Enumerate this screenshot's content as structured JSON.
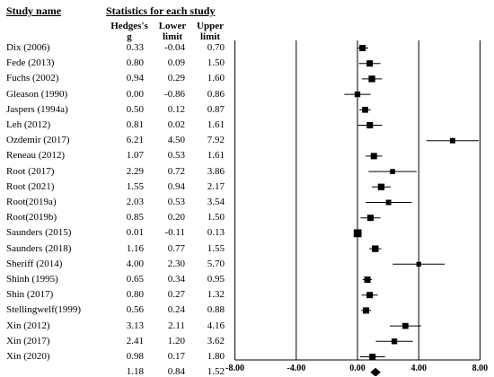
{
  "header": {
    "study_name": "Study name",
    "stats_group": "Statistics for each study",
    "col_g": "Hedges's g",
    "col_g_line1": "Hedges's",
    "col_g_line2": "g",
    "col_lower_line1": "Lower",
    "col_lower_line2": "limit",
    "col_upper_line1": "Upper",
    "col_upper_line2": "limit"
  },
  "rows": [
    {
      "study": "Dix (2006)",
      "g": "0.33",
      "lower": "-0.04",
      "upper": "0.70"
    },
    {
      "study": "Fede (2013)",
      "g": "0.80",
      "lower": "0.09",
      "upper": "1.50"
    },
    {
      "study": "Fuchs (2002)",
      "g": "0.94",
      "lower": "0.29",
      "upper": "1.60"
    },
    {
      "study": "Gleason (1990)",
      "g": "0.00",
      "lower": "-0.86",
      "upper": "0.86"
    },
    {
      "study": "Jaspers (1994a)",
      "g": "0.50",
      "lower": "0.12",
      "upper": "0.87"
    },
    {
      "study": "Leh (2012)",
      "g": "0.81",
      "lower": "0.02",
      "upper": "1.61"
    },
    {
      "study": "Ozdemir (2017)",
      "g": "6.21",
      "lower": "4.50",
      "upper": "7.92"
    },
    {
      "study": "Reneau (2012)",
      "g": "1.07",
      "lower": "0.53",
      "upper": "1.61"
    },
    {
      "study": "Root (2017)",
      "g": "2.29",
      "lower": "0.72",
      "upper": "3.86"
    },
    {
      "study": "Root (2021)",
      "g": "1.55",
      "lower": "0.94",
      "upper": "2.17"
    },
    {
      "study": "Root(2019a)",
      "g": "2.03",
      "lower": "0.53",
      "upper": "3.54"
    },
    {
      "study": "Root(2019b)",
      "g": "0.85",
      "lower": "0.20",
      "upper": "1.50"
    },
    {
      "study": "Saunders (2015)",
      "g": "0.01",
      "lower": "-0.11",
      "upper": "0.13"
    },
    {
      "study": "Saunders (2018)",
      "g": "1.16",
      "lower": "0.77",
      "upper": "1.55"
    },
    {
      "study": "Sheriff (2014)",
      "g": "4.00",
      "lower": "2.30",
      "upper": "5.70"
    },
    {
      "study": "Shinh (1995)",
      "g": "0.65",
      "lower": "0.34",
      "upper": "0.95"
    },
    {
      "study": "Shin (2017)",
      "g": "0.80",
      "lower": "0.27",
      "upper": "1.32"
    },
    {
      "study": "Stellingwelf(1999)",
      "g": "0.56",
      "lower": "0.24",
      "upper": "0.88"
    },
    {
      "study": "Xin (2012)",
      "g": "3.13",
      "lower": "2.11",
      "upper": "4.16"
    },
    {
      "study": "Xin (2017)",
      "g": "2.41",
      "lower": "1.20",
      "upper": "3.62"
    },
    {
      "study": "Xin (2020)",
      "g": "0.98",
      "lower": "0.17",
      "upper": "1.80"
    }
  ],
  "summary": {
    "g": "1.18",
    "lower": "0.84",
    "upper": "1.52"
  },
  "axis": {
    "ticks": [
      -8,
      -4,
      0,
      4,
      8
    ],
    "tick_labels": [
      "-8.00",
      "-4.00",
      "0.00",
      "4.00",
      "8.00"
    ]
  },
  "chart_data": {
    "type": "scatter",
    "title": "",
    "xlabel": "",
    "ylabel": "",
    "xlim": [
      -8,
      8
    ],
    "gridlines_at": [
      -8,
      -4,
      0,
      4,
      8
    ],
    "categories": [
      "Dix (2006)",
      "Fede (2013)",
      "Fuchs (2002)",
      "Gleason (1990)",
      "Jaspers (1994a)",
      "Leh (2012)",
      "Ozdemir (2017)",
      "Reneau (2012)",
      "Root (2017)",
      "Root (2021)",
      "Root(2019a)",
      "Root(2019b)",
      "Saunders (2015)",
      "Saunders (2018)",
      "Sheriff (2014)",
      "Shinh (1995)",
      "Shin (2017)",
      "Stellingwelf(1999)",
      "Xin (2012)",
      "Xin (2017)",
      "Xin (2020)"
    ],
    "series": [
      {
        "name": "Hedges's g",
        "values": [
          0.33,
          0.8,
          0.94,
          0.0,
          0.5,
          0.81,
          6.21,
          1.07,
          2.29,
          1.55,
          2.03,
          0.85,
          0.01,
          1.16,
          4.0,
          0.65,
          0.8,
          0.56,
          3.13,
          2.41,
          0.98
        ]
      },
      {
        "name": "Lower limit",
        "values": [
          -0.04,
          0.09,
          0.29,
          -0.86,
          0.12,
          0.02,
          4.5,
          0.53,
          0.72,
          0.94,
          0.53,
          0.2,
          -0.11,
          0.77,
          2.3,
          0.34,
          0.27,
          0.24,
          2.11,
          1.2,
          0.17
        ]
      },
      {
        "name": "Upper limit",
        "values": [
          0.7,
          1.5,
          1.6,
          0.86,
          0.87,
          1.61,
          7.92,
          1.61,
          3.86,
          2.17,
          3.54,
          1.5,
          0.13,
          1.55,
          5.7,
          0.95,
          1.32,
          0.88,
          4.16,
          3.62,
          1.8
        ]
      }
    ],
    "marker_weight": [
      1.0,
      1.0,
      1.05,
      0.9,
      0.95,
      1.0,
      0.85,
      1.0,
      0.8,
      1.05,
      0.85,
      1.0,
      1.25,
      1.05,
      0.75,
      1.0,
      1.0,
      1.0,
      0.95,
      0.9,
      1.0
    ],
    "summary": {
      "g": 1.18,
      "lower": 0.84,
      "upper": 1.52
    }
  }
}
